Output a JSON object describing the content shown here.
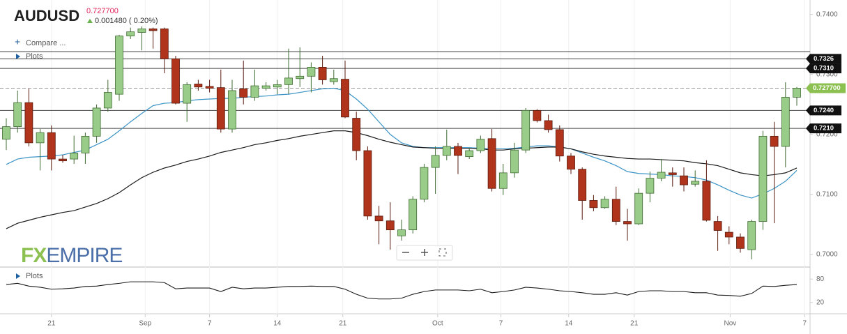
{
  "chart_data": {
    "type": "candlestick",
    "title": "AUDUSD",
    "last_price": {
      "value": 0.7277,
      "label": "0.727700"
    },
    "change": "0.001480 ( 0.20%)",
    "compare": "Compare ...",
    "plots": "Plots",
    "logo": {
      "left": "FX",
      "right": "EMPIRE"
    },
    "up_color": "#99cc88",
    "down_color": "#b0341c",
    "categories": [
      null,
      null,
      null,
      null,
      null,
      null,
      null,
      null,
      null,
      null,
      null,
      null,
      null,
      null,
      null,
      null,
      null,
      null,
      null,
      null,
      null,
      null,
      null,
      null,
      null,
      null,
      null,
      null,
      null,
      null,
      null,
      null,
      null,
      null,
      null,
      null,
      null,
      null,
      null,
      null,
      null,
      null,
      null,
      null,
      null,
      null,
      null,
      null,
      null,
      null,
      null,
      null,
      null,
      null,
      null,
      null,
      null,
      null,
      null,
      null,
      null,
      null,
      null,
      null,
      null,
      null,
      null,
      null,
      null,
      null,
      null
    ],
    "open": [
      0.7192,
      0.7213,
      0.7253,
      0.7186,
      0.7203,
      0.7159,
      0.7159,
      0.7169,
      0.7197,
      0.7244,
      0.7267,
      0.7364,
      0.737,
      0.7376,
      0.7376,
      0.7326,
      0.7252,
      0.7284,
      0.728,
      0.7278,
      0.7209,
      0.7276,
      0.7262,
      0.7277,
      0.7279,
      0.7283,
      0.7293,
      0.7297,
      0.7312,
      0.7288,
      0.7292,
      0.7227,
      0.7173,
      0.7064,
      0.7056,
      0.7031,
      0.7041,
      0.7092,
      0.7145,
      0.7165,
      0.718,
      0.7163,
      0.7173,
      0.7193,
      0.711,
      0.7136,
      0.7174,
      0.724,
      0.7223,
      0.7208,
      0.7164,
      0.7142,
      0.709,
      0.7078,
      0.7092,
      0.7055,
      0.7051,
      0.7102,
      0.7127,
      0.7136,
      0.7131,
      0.7117,
      0.7122,
      0.7055,
      0.7037,
      0.7029,
      0.7008,
      0.7055,
      0.7197,
      0.718,
      0.7262
    ],
    "high": [
      0.7227,
      0.7273,
      0.7276,
      0.7209,
      0.7215,
      0.7166,
      0.7198,
      0.7203,
      0.725,
      0.7291,
      0.7366,
      0.7378,
      0.738,
      0.7378,
      0.7378,
      0.7331,
      0.7287,
      0.7291,
      0.7291,
      0.7308,
      0.7291,
      0.7323,
      0.7308,
      0.7287,
      0.7291,
      0.7343,
      0.7345,
      0.732,
      0.7331,
      0.7308,
      0.7323,
      0.7238,
      0.718,
      0.7081,
      0.7087,
      0.7058,
      0.7097,
      0.7151,
      0.718,
      0.7208,
      0.7186,
      0.7178,
      0.7198,
      0.7209,
      0.7151,
      0.7186,
      0.7244,
      0.7242,
      0.7233,
      0.7215,
      0.7169,
      0.7145,
      0.7099,
      0.7097,
      0.7113,
      0.7076,
      0.711,
      0.7138,
      0.7159,
      0.7145,
      0.7145,
      0.714,
      0.7157,
      0.7064,
      0.7047,
      0.7035,
      0.7058,
      0.7206,
      0.7221,
      0.7287,
      0.7279
    ],
    "low": [
      0.7174,
      0.7203,
      0.718,
      0.714,
      0.714,
      0.7153,
      0.7151,
      0.7151,
      0.7186,
      0.7238,
      0.7256,
      0.7359,
      0.734,
      0.7343,
      0.7302,
      0.725,
      0.7221,
      0.7273,
      0.727,
      0.7203,
      0.7203,
      0.725,
      0.7256,
      0.7273,
      0.7267,
      0.7267,
      0.7279,
      0.727,
      0.7283,
      0.7283,
      0.7227,
      0.7157,
      0.7058,
      0.7017,
      0.7008,
      0.7023,
      0.7035,
      0.7087,
      0.7101,
      0.7157,
      0.7134,
      0.7159,
      0.7169,
      0.7105,
      0.7099,
      0.7128,
      0.7169,
      0.722,
      0.7203,
      0.7155,
      0.7134,
      0.7058,
      0.7072,
      0.7076,
      0.7049,
      0.7023,
      0.7049,
      0.7087,
      0.7122,
      0.7113,
      0.7105,
      0.7113,
      0.7055,
      0.7006,
      0.7017,
      0.7003,
      0.6992,
      0.7041,
      0.7052,
      0.7145,
      0.7248
    ],
    "close": [
      0.7213,
      0.7253,
      0.7186,
      0.7203,
      0.7159,
      0.7156,
      0.7169,
      0.7197,
      0.7244,
      0.727,
      0.7364,
      0.7371,
      0.7376,
      0.7373,
      0.7326,
      0.7252,
      0.7283,
      0.7279,
      0.7277,
      0.7209,
      0.7273,
      0.7262,
      0.7281,
      0.7281,
      0.7283,
      0.7294,
      0.7297,
      0.7312,
      0.7291,
      0.7293,
      0.7229,
      0.7173,
      0.7064,
      0.7056,
      0.7041,
      0.7041,
      0.7092,
      0.7145,
      0.7165,
      0.718,
      0.7165,
      0.7173,
      0.7192,
      0.711,
      0.7136,
      0.7174,
      0.724,
      0.7223,
      0.7208,
      0.7164,
      0.7142,
      0.709,
      0.7078,
      0.7092,
      0.7055,
      0.7051,
      0.7102,
      0.7127,
      0.7137,
      0.7133,
      0.7116,
      0.7122,
      0.7057,
      0.704,
      0.7029,
      0.701,
      0.7055,
      0.7197,
      0.718,
      0.7262,
      0.7277
    ],
    "overlays": [
      {
        "color": "#3a93c6",
        "values": [
          0.715,
          0.7159,
          0.7162,
          0.7163,
          0.7164,
          0.7166,
          0.717,
          0.7174,
          0.7183,
          0.7192,
          0.7206,
          0.7221,
          0.7235,
          0.7248,
          0.7252,
          0.7253,
          0.7256,
          0.7258,
          0.7259,
          0.726,
          0.726,
          0.7262,
          0.7263,
          0.7264,
          0.7266,
          0.7267,
          0.727,
          0.7273,
          0.7276,
          0.7277,
          0.7273,
          0.7259,
          0.7242,
          0.7221,
          0.72,
          0.7186,
          0.718,
          0.7178,
          0.7178,
          0.7178,
          0.7178,
          0.7178,
          0.7177,
          0.7176,
          0.7176,
          0.7177,
          0.7179,
          0.7181,
          0.7181,
          0.7179,
          0.7176,
          0.7169,
          0.7162,
          0.7156,
          0.7148,
          0.7138,
          0.7135,
          0.7134,
          0.7133,
          0.7131,
          0.713,
          0.7128,
          0.7124,
          0.7116,
          0.7107,
          0.7099,
          0.7094,
          0.7101,
          0.711,
          0.7122,
          0.714
        ]
      },
      {
        "color": "#1a1a1a",
        "values": [
          0.7043,
          0.7052,
          0.7057,
          0.7062,
          0.7066,
          0.707,
          0.7073,
          0.7079,
          0.7085,
          0.7093,
          0.7103,
          0.7116,
          0.7128,
          0.7137,
          0.7144,
          0.7149,
          0.7155,
          0.7159,
          0.7164,
          0.717,
          0.7174,
          0.7178,
          0.7183,
          0.7186,
          0.719,
          0.7193,
          0.7197,
          0.72,
          0.7203,
          0.7206,
          0.7206,
          0.7203,
          0.7198,
          0.7192,
          0.7187,
          0.7183,
          0.7179,
          0.7178,
          0.7177,
          0.7177,
          0.7177,
          0.7177,
          0.7176,
          0.7174,
          0.7174,
          0.7176,
          0.7177,
          0.7178,
          0.7179,
          0.7179,
          0.7176,
          0.7171,
          0.7167,
          0.7164,
          0.7162,
          0.716,
          0.7159,
          0.7159,
          0.7158,
          0.7157,
          0.7156,
          0.7153,
          0.7151,
          0.7148,
          0.7142,
          0.7136,
          0.7133,
          0.7131,
          0.7133,
          0.7136,
          0.7144
        ]
      }
    ],
    "hlines": [
      0.7338,
      0.7326,
      0.731,
      0.724,
      0.721
    ],
    "hline_labels": [
      null,
      "0.7326",
      "0.7310",
      "0.7240",
      "0.7210"
    ],
    "ylim": [
      0.6979,
      0.7424
    ],
    "yticks": [
      {
        "value": 0.7,
        "label": "0.7000"
      },
      {
        "value": 0.71,
        "label": "0.7100"
      },
      {
        "value": 0.72,
        "label": "0.7200"
      },
      {
        "value": 0.73,
        "label": "0.7300"
      },
      {
        "value": 0.74,
        "label": "0.7400"
      }
    ],
    "xticks": [
      {
        "value": 4,
        "label": "21"
      },
      {
        "value": 12.3,
        "label": "Sep"
      },
      {
        "value": 18,
        "label": "7"
      },
      {
        "value": 24,
        "label": "14"
      },
      {
        "value": 29.8,
        "label": "21"
      },
      {
        "value": 38.2,
        "label": "Oct"
      },
      {
        "value": 43.8,
        "label": "7"
      },
      {
        "value": 49.8,
        "label": "14"
      },
      {
        "value": 55.6,
        "label": "21"
      },
      {
        "value": 64.1,
        "label": "Nov"
      },
      {
        "value": 70.7,
        "label": "7"
      }
    ],
    "indicator": {
      "label": "Plots",
      "color": "#1a1a1a",
      "ylim": [
        0,
        100
      ],
      "yticks": [
        80,
        20
      ],
      "values": [
        66,
        69,
        62,
        59,
        54,
        55,
        57,
        61,
        62,
        66,
        69,
        73,
        73,
        73,
        71,
        55,
        57,
        57,
        57,
        48,
        59,
        55,
        57,
        57,
        59,
        61,
        61,
        62,
        61,
        61,
        54,
        41,
        31,
        29,
        29,
        31,
        41,
        48,
        52,
        52,
        52,
        50,
        54,
        45,
        48,
        52,
        59,
        57,
        54,
        50,
        48,
        45,
        41,
        41,
        45,
        39,
        48,
        50,
        50,
        48,
        48,
        45,
        45,
        39,
        38,
        36,
        43,
        62,
        61,
        64,
        66
      ]
    }
  }
}
